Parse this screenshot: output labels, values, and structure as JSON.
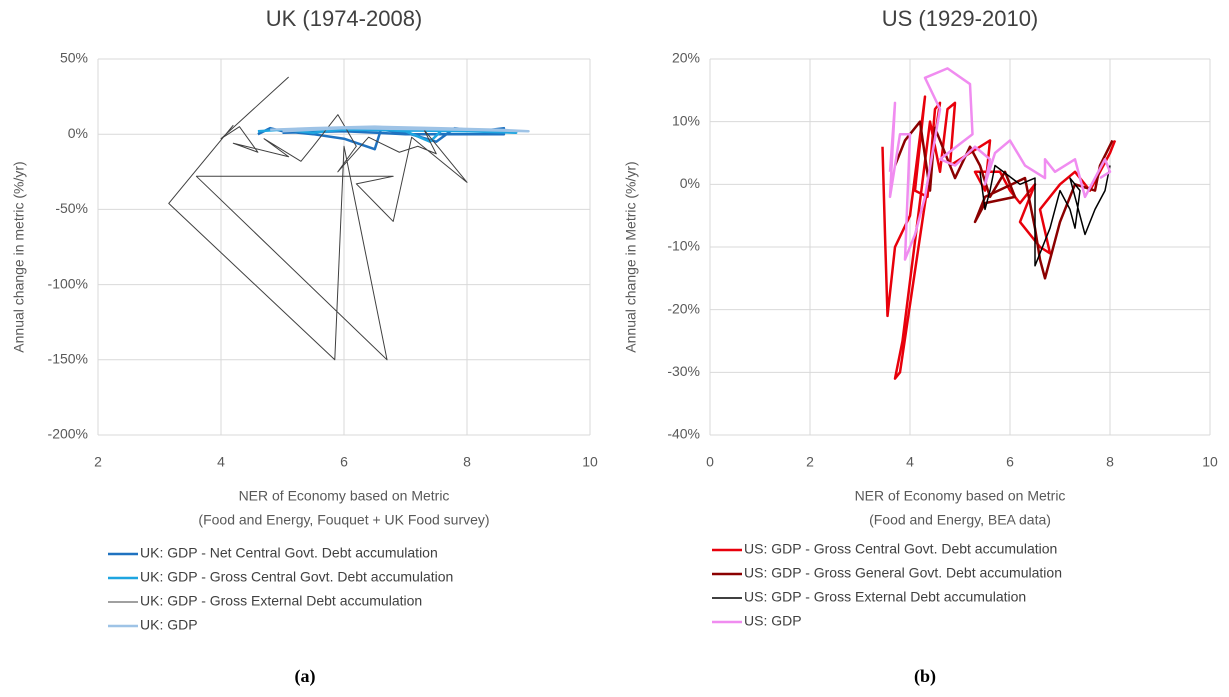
{
  "chart_data": [
    {
      "type": "line",
      "title": "UK (1974-2008)",
      "xlabel": [
        "NER of Economy based on  Metric",
        "(Food and Energy, Fouquet + UK Food survey)"
      ],
      "ylabel": "Annual change in metric (%/yr)",
      "caption": "(a)",
      "xlim": [
        2,
        10
      ],
      "xticks": [
        2,
        4,
        6,
        8,
        10
      ],
      "ylim": [
        -200,
        50
      ],
      "yticks": [
        {
          "value": -200,
          "label": "-200%"
        },
        {
          "value": -150,
          "label": "-150%"
        },
        {
          "value": -100,
          "label": "-100%"
        },
        {
          "value": -50,
          "label": "-50%"
        },
        {
          "value": 0,
          "label": "0%"
        },
        {
          "value": 50,
          "label": "50%"
        }
      ],
      "grid": true,
      "series": [
        {
          "name": "UK: GDP - Net Central Govt. Debt accumulation",
          "color": "#1f72c0",
          "x": [
            4.6,
            4.8,
            5,
            5.5,
            6,
            6.5,
            6.6,
            7,
            7.5,
            7.8,
            8.2,
            8.6,
            8.6,
            7,
            6,
            5
          ],
          "values": [
            0,
            4,
            2,
            0,
            -3,
            -10,
            3,
            1,
            -5,
            4,
            2,
            4,
            0,
            0,
            2,
            1
          ]
        },
        {
          "name": "UK: GDP - Gross Central Govt. Debt accumulation",
          "color": "#1ea5e0",
          "x": [
            4.6,
            5,
            5.5,
            6.2,
            7,
            7.4,
            7.6,
            8.2,
            8.8,
            8,
            6,
            4.8
          ],
          "values": [
            2,
            3,
            1,
            4,
            2,
            -5,
            3,
            3,
            1,
            2,
            3,
            3
          ]
        },
        {
          "name": "UK: GDP - Gross External Debt accumulation",
          "color": "#404040",
          "x": [
            5.1,
            4,
            4.3,
            4.6,
            4.2,
            5.1,
            4.7,
            5.3,
            5.5,
            5.9,
            6.2,
            5.9,
            6.4,
            6.9,
            7.2,
            7.5,
            7.3,
            8,
            7.1,
            6.8,
            6.2,
            6.8,
            3.6,
            6.7,
            6,
            5.85,
            3.15,
            4.2
          ],
          "values": [
            38,
            -3,
            5,
            -12,
            -6,
            -15,
            -3,
            -18,
            -8,
            13,
            -8,
            -25,
            -2,
            -12,
            -8,
            -13,
            3,
            -32,
            -2,
            -58,
            -33,
            -28,
            -28,
            -150,
            -8,
            -150,
            -46,
            6
          ]
        },
        {
          "name": "UK: GDP",
          "color": "#9ec3e6",
          "x": [
            4.8,
            5.5,
            6.5,
            7.5,
            8.5,
            9,
            8,
            6,
            5
          ],
          "values": [
            3,
            4,
            5,
            4,
            3,
            2,
            3,
            4,
            2
          ]
        }
      ]
    },
    {
      "type": "line",
      "title": "US (1929-2010)",
      "xlabel": [
        "NER of Economy based on Metric",
        "(Food and Energy, BEA data)"
      ],
      "ylabel": "Annual change in Metric (%/yr)",
      "caption": "(b)",
      "xlim": [
        0,
        10
      ],
      "xticks": [
        0,
        2,
        4,
        6,
        8,
        10
      ],
      "ylim": [
        -40,
        20
      ],
      "yticks": [
        {
          "value": -40,
          "label": "-40%"
        },
        {
          "value": -30,
          "label": "-30%"
        },
        {
          "value": -20,
          "label": "-20%"
        },
        {
          "value": -10,
          "label": "-10%"
        },
        {
          "value": 0,
          "label": "0%"
        },
        {
          "value": 10,
          "label": "10%"
        },
        {
          "value": 20,
          "label": "20%"
        }
      ],
      "grid": true,
      "series": [
        {
          "name": "US: GDP - Gross Central Govt. Debt accumulation",
          "color": "#e8000b",
          "x": [
            3.45,
            3.5,
            3.55,
            3.7,
            4,
            4.3,
            4.1,
            4.35,
            4.5,
            4.6,
            4.3,
            3.8,
            3.7,
            3.85,
            4.4,
            4.6,
            4.75,
            4.9,
            4.8,
            5.2,
            5.6,
            5.5,
            5.3,
            5.8,
            6,
            6.2,
            6.5,
            6.2,
            6.6,
            6.8,
            6.6,
            7,
            7.3,
            7.6,
            8,
            8.1
          ],
          "values": [
            6,
            -8,
            -21,
            -10,
            -5,
            14,
            -1,
            -2,
            12,
            13,
            -3,
            -30,
            -31,
            -25,
            10,
            2,
            12,
            13,
            3,
            5,
            7,
            -1,
            2,
            2,
            -1,
            -3,
            0,
            -6,
            -10,
            -11,
            -4,
            0,
            2,
            -1,
            5,
            7
          ]
        },
        {
          "name": "US: GDP - Gross General Govt. Debt accumulation",
          "color": "#8b0000",
          "x": [
            3.7,
            3.9,
            4.2,
            4.4,
            4.5,
            4.9,
            5.2,
            5.4,
            5.6,
            5.9,
            6.1,
            5.5,
            5.3,
            5.5,
            6.3,
            6.5,
            6.6,
            6.7,
            7,
            7.3,
            7.7,
            7.8,
            8.05
          ],
          "values": [
            3,
            7,
            10,
            -1,
            9,
            1,
            6,
            3,
            -2,
            2,
            -2,
            -3,
            -6,
            -2,
            1,
            -7,
            -12,
            -15,
            -6,
            0,
            -1,
            3,
            7
          ]
        },
        {
          "name": "US: GDP - Gross External Debt accumulation",
          "color": "#000000",
          "x": [
            5.4,
            5.5,
            5.6,
            5.7,
            6.2,
            6.5,
            6.5,
            6.8,
            7,
            7.2,
            7.3,
            7.4,
            7.2,
            7.5,
            7.7,
            7.9,
            8
          ],
          "values": [
            2,
            -4,
            -1,
            3,
            0,
            1,
            -13,
            -7,
            -1,
            -4,
            -7,
            -1,
            1,
            -8,
            -4,
            -1,
            3
          ]
        },
        {
          "name": "US: GDP",
          "color": "#f08cf0",
          "x": [
            3.6,
            3.7,
            3.6,
            3.8,
            4,
            3.9,
            4.1,
            4.3,
            4.6,
            4.3,
            4.75,
            5.2,
            5.25,
            4.6,
            4.9,
            5.3,
            5.6,
            5.5,
            5.7,
            6,
            6.3,
            6.7,
            6.7,
            6.9,
            7.3,
            7.5,
            7.9,
            8,
            7.8
          ],
          "values": [
            2,
            13,
            -2,
            8,
            8,
            -12,
            -8,
            -2,
            12,
            17,
            18.5,
            16,
            8,
            4,
            3,
            6,
            4,
            0,
            5,
            7,
            3,
            1,
            4,
            2,
            4,
            -2,
            4,
            2,
            1
          ]
        }
      ]
    }
  ]
}
